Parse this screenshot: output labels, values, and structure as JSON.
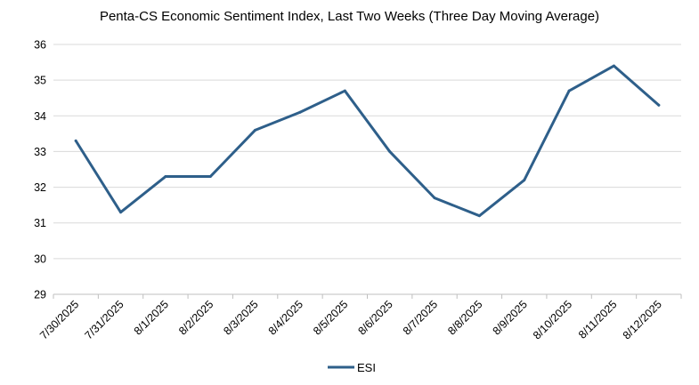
{
  "chart_data": {
    "type": "line",
    "title": "Penta-CS Economic Sentiment Index, Last Two Weeks (Three Day Moving Average)",
    "xlabel": "",
    "ylabel": "",
    "categories": [
      "7/30/2025",
      "7/31/2025",
      "8/1/2025",
      "8/2/2025",
      "8/3/2025",
      "8/4/2025",
      "8/5/2025",
      "8/6/2025",
      "8/7/2025",
      "8/8/2025",
      "8/9/2025",
      "8/10/2025",
      "8/11/2025",
      "8/12/2025"
    ],
    "series": [
      {
        "name": "ESI",
        "color": "#2e5f8a",
        "values": [
          33.3,
          31.3,
          32.3,
          32.3,
          33.6,
          34.1,
          34.7,
          33.0,
          31.7,
          31.2,
          32.2,
          34.7,
          35.4,
          34.3
        ]
      }
    ],
    "ylim": [
      29,
      36
    ],
    "yticks": [
      "29",
      "30",
      "31",
      "32",
      "33",
      "34",
      "35",
      "36"
    ],
    "grid": true,
    "legend_position": "bottom"
  }
}
